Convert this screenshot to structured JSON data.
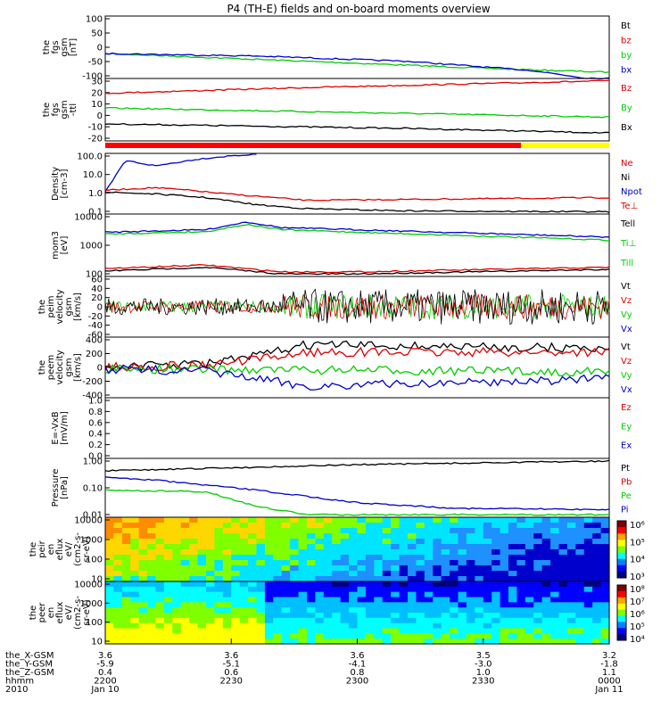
{
  "title": "P4 (TH-E) fields and on-board moments overview",
  "colors": {
    "black": "#000000",
    "red": "#dd0000",
    "green": "#00cc00",
    "blue": "#0000cc",
    "yellow": "#ffff00"
  },
  "chart_data": [
    {
      "type": "line",
      "ylabel": [
        "the",
        "fgs",
        "gsm",
        "[nT]"
      ],
      "ylim": [
        -100,
        100
      ],
      "yticks": [
        "100",
        "50",
        "0",
        "-50",
        "-100"
      ],
      "legend": [
        {
          "name": "Bt",
          "color": "black"
        },
        {
          "name": "bz",
          "color": "red"
        },
        {
          "name": "by",
          "color": "green"
        },
        {
          "name": "bx",
          "color": "blue"
        }
      ],
      "series": [
        {
          "name": "by",
          "color": "green",
          "x": [
            0,
            0.4,
            0.8,
            1
          ],
          "y": [
            -20,
            -45,
            -70,
            -80
          ]
        },
        {
          "name": "bx",
          "color": "blue",
          "x": [
            0,
            0.3,
            0.6,
            0.85,
            0.95,
            1
          ],
          "y": [
            -20,
            -28,
            -45,
            -75,
            -98,
            -100
          ]
        }
      ]
    },
    {
      "type": "line",
      "ylabel": [
        "the",
        "fgs",
        "gsm",
        "-ttl"
      ],
      "ylim": [
        -25,
        30
      ],
      "yticks": [
        "30",
        "20",
        "10",
        "0",
        "-10",
        "-20"
      ],
      "legend": [
        {
          "name": "Bz",
          "color": "red"
        },
        {
          "name": "By",
          "color": "green"
        },
        {
          "name": "Bx",
          "color": "black"
        }
      ],
      "series": [
        {
          "name": "Bz",
          "color": "red",
          "x": [
            0,
            0.4,
            0.8,
            1
          ],
          "y": [
            17,
            22,
            26,
            28
          ]
        },
        {
          "name": "By",
          "color": "green",
          "x": [
            0,
            0.5,
            1
          ],
          "y": [
            4,
            0,
            -4
          ]
        },
        {
          "name": "Bx",
          "color": "black",
          "x": [
            0,
            0.6,
            1
          ],
          "y": [
            -10,
            -14,
            -18
          ]
        }
      ]
    },
    {
      "type": "line",
      "ylabel": [
        "Density",
        "[cm-3]"
      ],
      "ylim": [
        0.06,
        150
      ],
      "log": true,
      "yticks": [
        "100.0",
        "10.0",
        "1.0",
        "0.1"
      ],
      "legend": [
        {
          "name": "Ne",
          "color": "red"
        },
        {
          "name": "Ni",
          "color": "black"
        },
        {
          "name": "Npot",
          "color": "blue"
        },
        {
          "name": "Te⊥",
          "color": "red"
        }
      ],
      "series": [
        {
          "name": "Npot",
          "color": "blue",
          "x": [
            0,
            0.04,
            0.1,
            0.18,
            0.25,
            0.3
          ],
          "y": [
            1,
            60,
            30,
            70,
            110,
            130
          ]
        },
        {
          "name": "Ne",
          "color": "red",
          "x": [
            0,
            0.1,
            0.18,
            0.22,
            0.3,
            0.4,
            1
          ],
          "y": [
            1.3,
            1.8,
            1.2,
            0.9,
            0.6,
            0.35,
            0.5
          ]
        },
        {
          "name": "Ni",
          "color": "black",
          "x": [
            0,
            0.1,
            0.2,
            0.3,
            0.4,
            0.6,
            1
          ],
          "y": [
            1.0,
            0.8,
            0.5,
            0.2,
            0.12,
            0.09,
            0.08
          ]
        }
      ]
    },
    {
      "type": "line",
      "ylabel": [
        "mom3",
        "[eV]"
      ],
      "ylim": [
        40,
        10000
      ],
      "log": true,
      "yticks": [
        "10000",
        "1000",
        "100"
      ],
      "legend": [
        {
          "name": "Tell",
          "color": "black"
        },
        {
          "name": "Ti⊥",
          "color": "green"
        },
        {
          "name": "Till",
          "color": "green"
        }
      ],
      "series": [
        {
          "name": "Ti",
          "color": "blue",
          "x": [
            0,
            0.2,
            0.28,
            0.35,
            0.5,
            1
          ],
          "y": [
            2000,
            2500,
            5000,
            3000,
            2500,
            1300
          ]
        },
        {
          "name": "Ti⊥",
          "color": "green",
          "x": [
            0,
            0.2,
            0.28,
            0.35,
            0.5,
            1
          ],
          "y": [
            1700,
            2100,
            4000,
            2500,
            2000,
            1000
          ]
        },
        {
          "name": "Te",
          "color": "red",
          "x": [
            0,
            0.2,
            0.35,
            0.5,
            1
          ],
          "y": [
            80,
            110,
            60,
            60,
            90
          ]
        },
        {
          "name": "Tell",
          "color": "black",
          "x": [
            0,
            0.2,
            0.35,
            0.5,
            1
          ],
          "y": [
            65,
            90,
            50,
            50,
            75
          ]
        }
      ]
    },
    {
      "type": "line",
      "ylabel": [
        "the",
        "peim",
        "velocity",
        "gsm",
        "[km/s]"
      ],
      "ylim": [
        -60,
        60
      ],
      "yticks": [
        "60",
        "40",
        "20",
        "0",
        "-20",
        "-40",
        "-60"
      ],
      "legend": [
        {
          "name": "Vt",
          "color": "black"
        },
        {
          "name": "Vz",
          "color": "red"
        },
        {
          "name": "Vy",
          "color": "green"
        },
        {
          "name": "Vx",
          "color": "blue"
        }
      ]
    },
    {
      "type": "line",
      "ylabel": [
        "the",
        "peem",
        "velocity",
        "gsm",
        "[km/s]"
      ],
      "ylim": [
        -400,
        400
      ],
      "yticks": [
        "400",
        "200",
        "0",
        "-200",
        "-400"
      ],
      "legend": [
        {
          "name": "Vt",
          "color": "black"
        },
        {
          "name": "Vz",
          "color": "red"
        },
        {
          "name": "Vy",
          "color": "green"
        },
        {
          "name": "Vx",
          "color": "blue"
        }
      ],
      "series": [
        {
          "name": "Vt",
          "color": "black",
          "x": [
            0,
            0.2,
            0.3,
            0.4,
            1
          ],
          "y": [
            0,
            50,
            150,
            300,
            250
          ]
        },
        {
          "name": "Vz",
          "color": "red",
          "x": [
            0,
            0.2,
            0.3,
            0.4,
            1
          ],
          "y": [
            0,
            30,
            100,
            200,
            200
          ]
        },
        {
          "name": "Vy",
          "color": "green",
          "x": [
            0,
            0.3,
            1
          ],
          "y": [
            -20,
            -30,
            -60
          ]
        },
        {
          "name": "Vx",
          "color": "blue",
          "x": [
            0,
            0.2,
            0.3,
            0.4,
            1
          ],
          "y": [
            -20,
            -50,
            -150,
            -250,
            -150
          ]
        }
      ]
    },
    {
      "type": "line",
      "ylabel": [
        "E=-VxB",
        "[mV/m]"
      ],
      "ylim": [
        0,
        1
      ],
      "yticks": [
        "1.0",
        "0.8",
        "0.6",
        "0.4",
        "0.2",
        "0.0"
      ],
      "legend": [
        {
          "name": "Ez",
          "color": "red"
        },
        {
          "name": "Ey",
          "color": "green"
        },
        {
          "name": "Ex",
          "color": "blue"
        }
      ]
    },
    {
      "type": "line",
      "ylabel": [
        "Pressure",
        "[nPa]"
      ],
      "ylim": [
        0.003,
        2
      ],
      "log": true,
      "yticks": [
        "1.00",
        "0.10",
        "0.01"
      ],
      "legend": [
        {
          "name": "Pt",
          "color": "black"
        },
        {
          "name": "Pb",
          "color": "red"
        },
        {
          "name": "Pe",
          "color": "green"
        },
        {
          "name": "Pi",
          "color": "blue"
        }
      ],
      "series": [
        {
          "name": "Pt",
          "color": "black",
          "x": [
            0,
            0.5,
            1
          ],
          "y": [
            0.5,
            1.0,
            1.5
          ]
        },
        {
          "name": "Pi",
          "color": "blue",
          "x": [
            0,
            0.1,
            0.3,
            0.5,
            0.7,
            1
          ],
          "y": [
            0.25,
            0.18,
            0.06,
            0.015,
            0.008,
            0.007
          ]
        },
        {
          "name": "Pe",
          "color": "green",
          "x": [
            0,
            0.2,
            0.3,
            0.4,
            1
          ],
          "y": [
            0.06,
            0.05,
            0.01,
            0.004,
            0.004
          ]
        }
      ]
    },
    {
      "type": "heatmap",
      "ylabel": [
        "the",
        "peir",
        "en",
        "eflux",
        "eV/",
        "(cm2-s-",
        "sr-eV)"
      ],
      "yticks": [
        "10000",
        "1000",
        "100",
        "10"
      ],
      "colorbar": [
        "10⁶",
        "10⁵",
        "10⁴",
        "10³"
      ]
    },
    {
      "type": "heatmap",
      "ylabel": [
        "the",
        "peer",
        "en",
        "eflux",
        "eV/",
        "(cm2-s-",
        "sr-eV)"
      ],
      "yticks": [
        "10000",
        "1000",
        "100",
        "10"
      ],
      "colorbar": [
        "10⁸",
        "10⁷",
        "10⁶",
        "10⁵",
        "10⁴"
      ]
    }
  ],
  "xaxis": {
    "rows": [
      {
        "label": "the_X-GSM",
        "values": [
          "3.6",
          "3.6",
          "3.6",
          "3.5",
          "3.2"
        ]
      },
      {
        "label": "the_Y-GSM",
        "values": [
          "-5.9",
          "-5.1",
          "-4.1",
          "-3.0",
          "-1.8"
        ]
      },
      {
        "label": "the_Z-GSM",
        "values": [
          "0.4",
          "0.6",
          "0.8",
          "1.0",
          "1.1"
        ]
      },
      {
        "label": "hhmm",
        "values": [
          "2200",
          "2230",
          "2300",
          "2330",
          "0000"
        ]
      },
      {
        "label": "2010",
        "values": [
          "Jan 10",
          "",
          "",
          "",
          "Jan 11"
        ]
      }
    ]
  }
}
